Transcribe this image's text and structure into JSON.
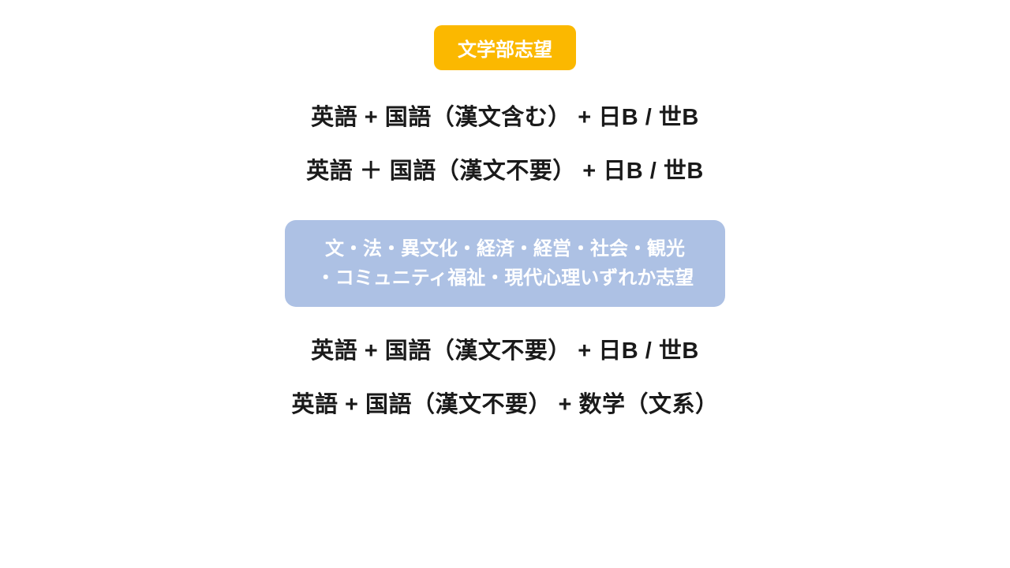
{
  "section1": {
    "badge": "文学部志望",
    "line1": "英語 + 国語（漢文含む） + 日B / 世B",
    "line2": "英語 ＋ 国語（漢文不要） + 日B / 世B"
  },
  "section2": {
    "badge_line1": "文・法・異文化・経済・経営・社会・観光",
    "badge_line2": "・コミュニティ福祉・現代心理いずれか志望",
    "line1": "英語 + 国語（漢文不要） + 日B / 世B",
    "line2": "英語 + 国語（漢文不要） + 数学（文系）"
  },
  "colors": {
    "badge_orange_bg": "#fbb800",
    "badge_blue_bg": "#adc1e4",
    "badge_text": "#ffffff",
    "body_text": "#1a1a1a",
    "page_bg": "#ffffff"
  },
  "typography": {
    "badge_fontsize": 24,
    "body_fontsize": 29,
    "body_weight": 700
  }
}
